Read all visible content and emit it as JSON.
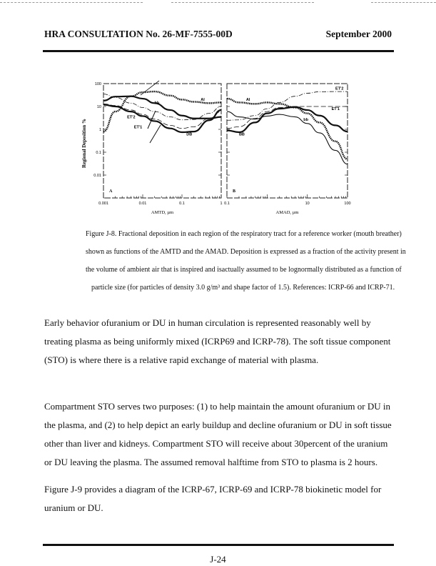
{
  "header": {
    "title": "HRA CONSULTATION No. 26-MF-7555-00D",
    "date": "September 2000"
  },
  "chart_data": [
    {
      "type": "line",
      "panel_label": "A",
      "xlabel": "AMTD, µm",
      "ylabel": "Regional Deposition %",
      "x_scale": "log",
      "y_scale": "log",
      "xlim": [
        0.001,
        1
      ],
      "ylim": [
        0.001,
        100
      ],
      "x_ticks": [
        "0.001",
        "0.01",
        "0.1",
        "1"
      ],
      "y_ticks": [
        "0.01",
        "0.1",
        "1",
        "10",
        "100"
      ],
      "x": [
        0.001,
        0.002,
        0.005,
        0.01,
        0.02,
        0.05,
        0.1,
        0.2,
        0.5,
        1
      ],
      "series": [
        {
          "name": "AI",
          "style": "dotted-thick",
          "values": [
            0.8,
            6,
            28,
            42,
            45,
            30,
            20,
            16,
            14,
            15
          ]
        },
        {
          "name": "bb",
          "style": "solid-thick",
          "values": [
            18,
            27,
            28,
            22,
            14,
            7,
            4,
            3,
            3,
            3.5
          ]
        },
        {
          "name": "ET'2",
          "style": "dashdot",
          "values": [
            35,
            25,
            14,
            9,
            6,
            3.5,
            2.6,
            2.7,
            5,
            10
          ]
        },
        {
          "name": "ET'1",
          "style": "dashed",
          "values": [
            13,
            11,
            7,
            4.5,
            2.8,
            1.5,
            1.1,
            1.3,
            3,
            6
          ]
        },
        {
          "name": "DB",
          "style": "solid-thick",
          "values": [
            12,
            10,
            6,
            3.8,
            2.3,
            1.1,
            0.75,
            0.8,
            2.5,
            7
          ]
        }
      ],
      "annotations": [
        "AI",
        "bb",
        "ET'2",
        "ET'1",
        "DB",
        "A"
      ]
    },
    {
      "type": "line",
      "panel_label": "B",
      "xlabel": "AMAD, µm",
      "x_scale": "log",
      "y_scale": "log",
      "xlim": [
        0.1,
        100
      ],
      "ylim": [
        0.001,
        100
      ],
      "x_ticks": [
        "0.1",
        "10",
        "100"
      ],
      "x": [
        0.1,
        0.2,
        0.5,
        1,
        2,
        5,
        10,
        20,
        50,
        100
      ],
      "series": [
        {
          "name": "AI",
          "style": "dotted-thick",
          "values": [
            22,
            15,
            13,
            15,
            13,
            9,
            5,
            2,
            0.3,
            0.05
          ]
        },
        {
          "name": "ET'2",
          "style": "dashdot",
          "values": [
            2.5,
            2.6,
            4,
            8,
            15,
            28,
            38,
            44,
            45,
            45
          ]
        },
        {
          "name": "ET'1",
          "style": "dashed",
          "values": [
            1.1,
            1.3,
            3,
            6,
            9,
            10,
            10,
            10,
            10,
            10
          ]
        },
        {
          "name": "bb",
          "style": "solid",
          "values": [
            6,
            3.5,
            2.8,
            3.8,
            4.5,
            3.5,
            1.8,
            0.7,
            0.12,
            0.03
          ]
        },
        {
          "name": "BB",
          "style": "solid-thick",
          "values": [
            0.9,
            0.75,
            2,
            5,
            8,
            9.5,
            7,
            4,
            1.5,
            0.8
          ]
        }
      ],
      "annotations": [
        "AI",
        "ET'2",
        "ET'1",
        "bb",
        "BB",
        "B"
      ]
    }
  ],
  "caption": [
    "Figure J-8.  Fractional deposition in each region of the respiratory tract for a reference worker (mouth breather)",
    "shown as functions of the AMTD and the AMAD.  Deposition is expressed as a fraction of the activity present in",
    "the volume of ambient air that is inspired and isactually assumed to be lognormally distributed as a function of",
    "particle size (for particles of density 3.0 g/m³ and shape factor of 1.5). References:  ICRP-66 and ICRP-71."
  ],
  "paragraphs": [
    [
      "Early behavior ofuranium or DU in human circulation is represented reasonably well by",
      "treating plasma as being uniformly mixed (ICRP69 and ICRP-78).  The soft tissue component",
      "(STO) is where there is a relative rapid exchange of material with plasma."
    ],
    [
      "Compartment STO serves two purposes:  (1) to help maintain the amount ofuranium or DU in",
      "the plasma, and (2) to help depict an early buildup and decline ofuranium or DU in soft tissue",
      "other than liver and kidneys.  Compartment STO will receive about 30percent of the uranium",
      "or DU leaving the plasma.  The assumed removal halftime from STO to plasma is 2 hours."
    ],
    [
      "Figure J-9 provides a diagram of the ICRP-67, ICRP-69 and ICRP-78 biokinetic model for",
      "uranium or DU."
    ]
  ],
  "footer": {
    "page": "J-24"
  }
}
